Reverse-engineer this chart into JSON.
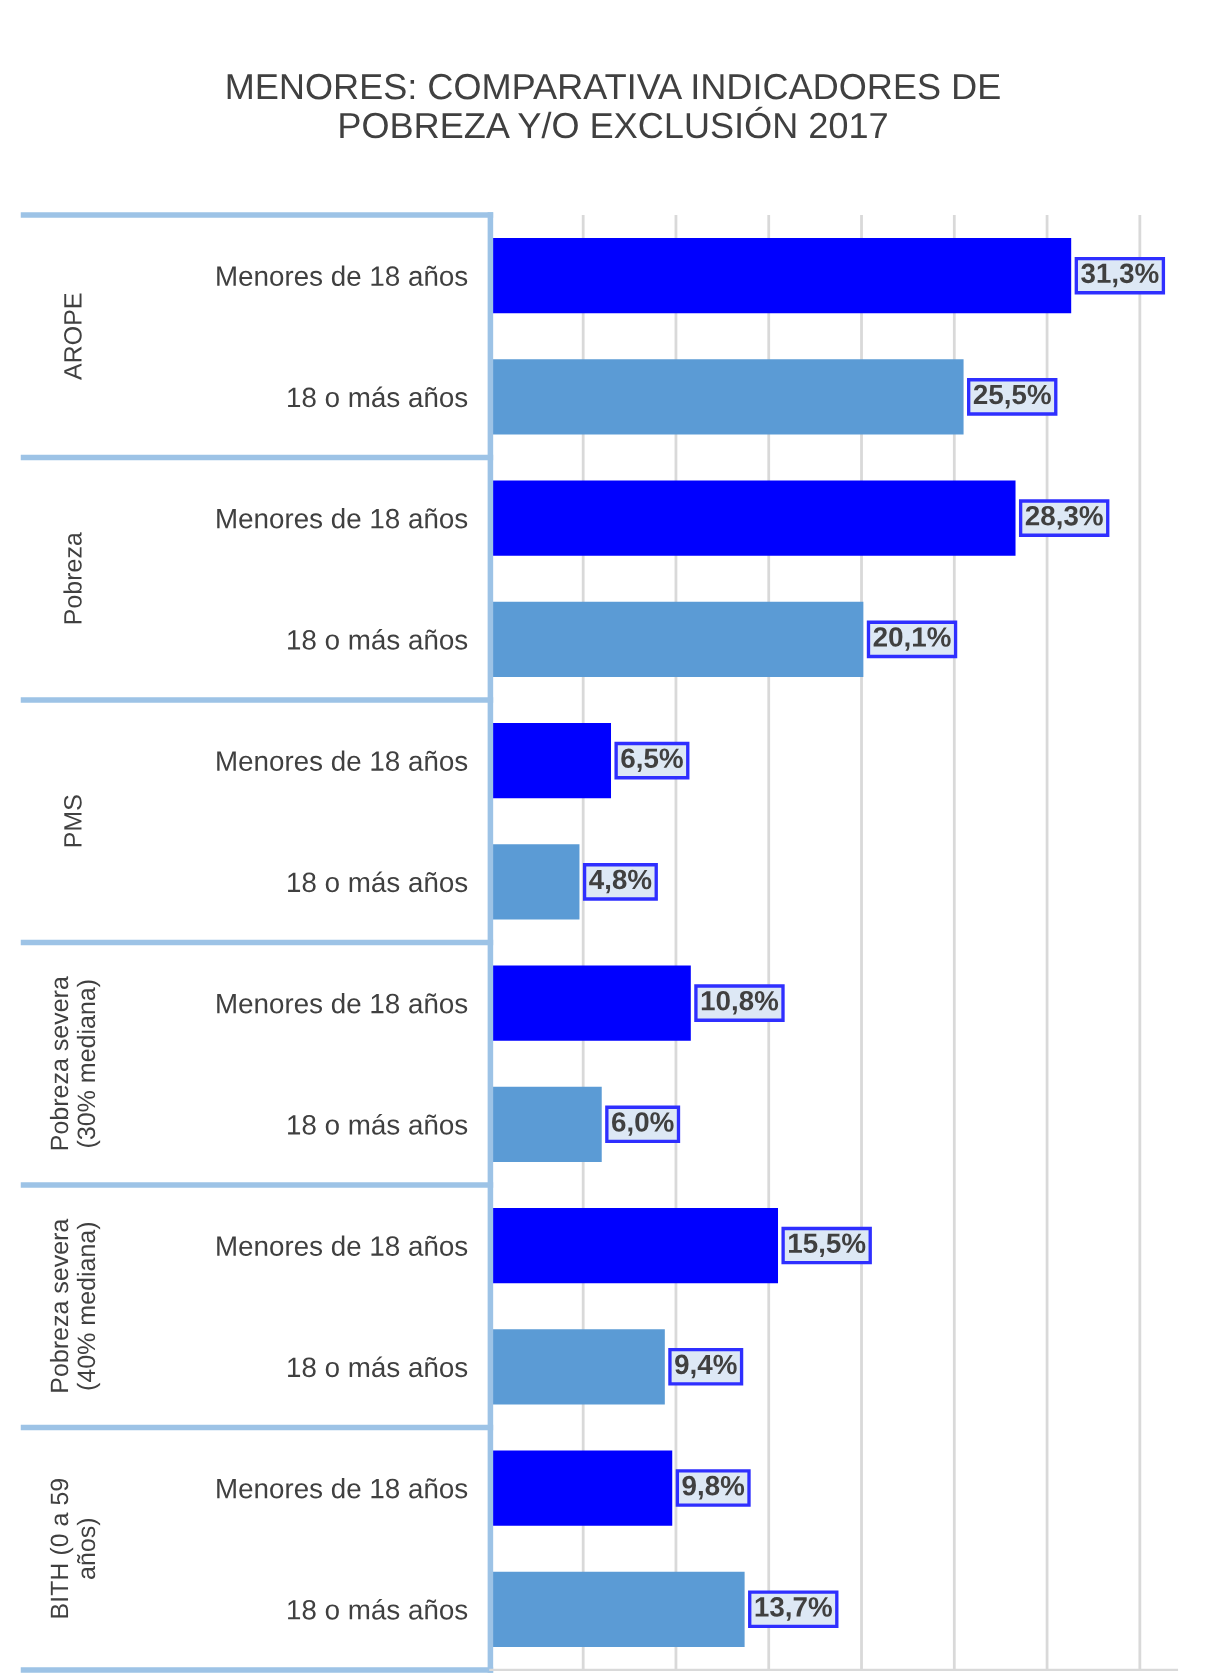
{
  "chart_data": {
    "type": "bar",
    "orientation": "horizontal",
    "title": "MENORES: COMPARATIVA INDICADORES DE\nPOBREZA Y/O EXCLUSIÓN 2017",
    "categories": [
      "Menores de 18 años",
      "18 o más años",
      "Menores de 18 años",
      "18 o más años",
      "Menores de 18 años",
      "18 o más años",
      "Menores de 18 años",
      "18 o más años",
      "Menores de 18 años",
      "18 o más años",
      "Menores de 18 años",
      "18 o más años"
    ],
    "values": [
      31.3,
      25.5,
      28.3,
      20.1,
      6.5,
      4.8,
      10.8,
      6.0,
      15.5,
      9.4,
      9.8,
      13.7
    ],
    "colors": [
      "#0000ff",
      "#5b9bd5",
      "#0000ff",
      "#5b9bd5",
      "#0000ff",
      "#5b9bd5",
      "#0000ff",
      "#5b9bd5",
      "#0000ff",
      "#5b9bd5",
      "#0000ff",
      "#5b9bd5"
    ],
    "value_labels": [
      "31,3%",
      "25,5%",
      "28,3%",
      "20,1%",
      "6,5%",
      "4,8%",
      "10,8%",
      "6,0%",
      "15,5%",
      "9,4%",
      "9,8%",
      "13,7%"
    ],
    "annotations": [
      "AROPE",
      "Pobreza",
      "PMS",
      "Pobreza severa\n(30% mediana)",
      "Pobreza severa\n(40% mediana)",
      "BITH (0 a 59\naños)"
    ],
    "xlim": [
      0,
      37
    ],
    "xticks": [
      {
        "value": 0,
        "label": null
      },
      {
        "value": 5,
        "label": null
      },
      {
        "value": 10,
        "label": null
      },
      {
        "value": 15,
        "label": null
      },
      {
        "value": 20,
        "label": null
      },
      {
        "value": 25,
        "label": null
      },
      {
        "value": 30,
        "label": null
      },
      {
        "value": 35,
        "label": null
      }
    ],
    "grid": "x",
    "legend": false
  }
}
